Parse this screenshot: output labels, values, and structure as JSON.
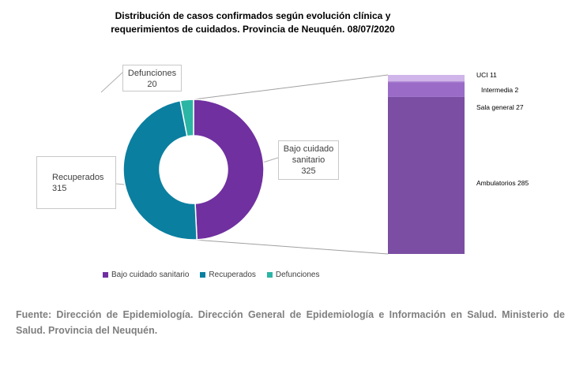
{
  "title": {
    "line1": "Distribución de casos confirmados según evolución clínica y",
    "line2": "requerimientos de cuidados. Provincia de Neuquén. 08/07/2020"
  },
  "colors": {
    "bajo": "#7030a0",
    "recuperados": "#0b7fa0",
    "defunciones": "#2bb5a5",
    "ambulatorios": "#7b4ea3",
    "sala": "#9a6cc7",
    "intermedia": "#b48ed9",
    "uci": "#cfb5ea"
  },
  "chart_data": [
    {
      "type": "pie",
      "style": "donut",
      "title": "Distribución de casos confirmados según evolución clínica y requerimientos de cuidados. Provincia de Neuquén. 08/07/2020",
      "slices": [
        {
          "name": "Bajo cuidado sanitario",
          "label_line1": "Bajo cuidado",
          "label_line2": "sanitario",
          "value": 325
        },
        {
          "name": "Recuperados",
          "label_line1": "Recuperados",
          "value": 315
        },
        {
          "name": "Defunciones",
          "label_line1": "Defunciones",
          "value": 20
        }
      ],
      "legend_position": "bottom"
    },
    {
      "type": "bar",
      "stacked": true,
      "breakdown_of": "Bajo cuidado sanitario",
      "segments": [
        {
          "name": "Ambulatorios",
          "value": 285
        },
        {
          "name": "Sala general",
          "value": 27
        },
        {
          "name": "Intermedia",
          "value": 2
        },
        {
          "name": "UCI",
          "value": 11
        }
      ]
    }
  ],
  "legend": [
    {
      "label": "Bajo cuidado sanitario"
    },
    {
      "label": "Recuperados"
    },
    {
      "label": "Defunciones"
    }
  ],
  "source": "Fuente: Dirección de Epidemiología. Dirección General de Epidemiología e Información en Salud. Ministerio de Salud. Provincia del Neuquén."
}
